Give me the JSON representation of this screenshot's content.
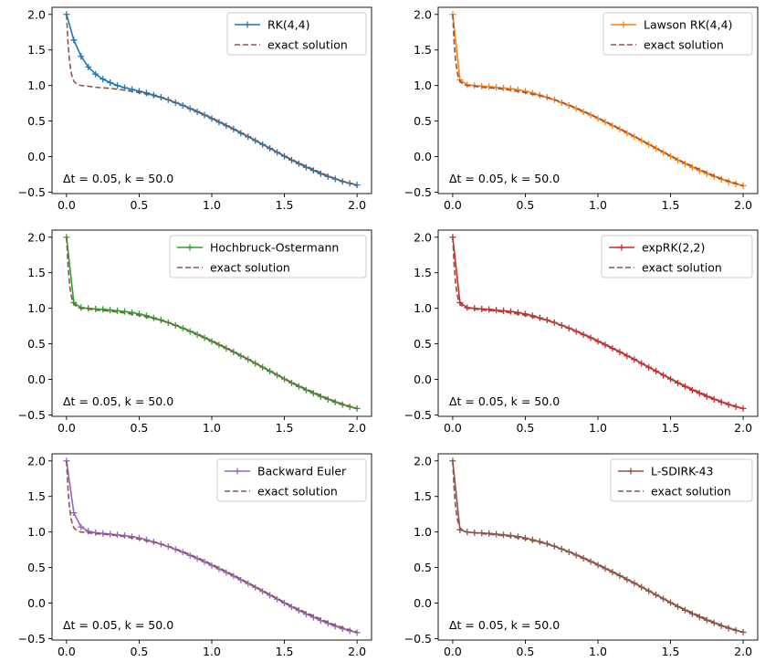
{
  "chart_data": [
    {
      "type": "line",
      "xlim": [
        -0.1,
        2.1
      ],
      "ylim": [
        -0.52,
        2.1
      ],
      "xticks": [
        "0.0",
        "0.5",
        "1.0",
        "1.5",
        "2.0"
      ],
      "yticks": [
        "−0.5",
        "0.0",
        "0.5",
        "1.0",
        "1.5",
        "2.0"
      ],
      "legend_position": "top-right",
      "annotation": "Δt = 0.05, k = 50.0",
      "series": [
        {
          "name": "RK(4,4)",
          "color": "#1f77b4",
          "style": "solid-plus-markers",
          "x": [
            0,
            0.05,
            0.1,
            0.15,
            0.2,
            0.25,
            0.3,
            0.35,
            0.4,
            0.45,
            0.5,
            0.55,
            0.6,
            0.65,
            0.7,
            0.75,
            0.8,
            0.85,
            0.9,
            0.95,
            1.0,
            1.05,
            1.1,
            1.15,
            1.2,
            1.25,
            1.3,
            1.35,
            1.4,
            1.45,
            1.5,
            1.55,
            1.6,
            1.65,
            1.7,
            1.75,
            1.8,
            1.85,
            1.9,
            1.95,
            2.0
          ],
          "y": [
            2.0,
            1.64,
            1.41,
            1.26,
            1.16,
            1.09,
            1.04,
            1.0,
            0.97,
            0.945,
            0.92,
            0.895,
            0.865,
            0.835,
            0.8,
            0.76,
            0.72,
            0.675,
            0.63,
            0.585,
            0.535,
            0.485,
            0.435,
            0.385,
            0.33,
            0.28,
            0.225,
            0.17,
            0.115,
            0.06,
            0.005,
            -0.05,
            -0.1,
            -0.15,
            -0.195,
            -0.24,
            -0.28,
            -0.315,
            -0.35,
            -0.375,
            -0.4
          ]
        },
        {
          "name": "exact solution",
          "color": "#8c564b",
          "style": "dashed",
          "x": [
            0,
            0.01,
            0.02,
            0.03,
            0.04,
            0.05,
            0.06,
            0.08,
            0.1,
            0.15,
            0.2,
            0.3,
            0.4,
            0.5,
            0.6,
            0.7,
            0.8,
            0.9,
            1.0,
            1.1,
            1.2,
            1.3,
            1.4,
            1.5,
            1.6,
            1.7,
            1.8,
            1.9,
            2.0
          ],
          "y": [
            2.0,
            1.6,
            1.35,
            1.2,
            1.11,
            1.06,
            1.04,
            1.01,
            1.0,
            0.99,
            0.975,
            0.96,
            0.935,
            0.9,
            0.855,
            0.8,
            0.725,
            0.64,
            0.545,
            0.445,
            0.34,
            0.23,
            0.12,
            0.01,
            -0.09,
            -0.18,
            -0.27,
            -0.345,
            -0.41
          ]
        }
      ]
    },
    {
      "type": "line",
      "xlim": [
        -0.1,
        2.1
      ],
      "ylim": [
        -0.52,
        2.1
      ],
      "xticks": [
        "0.0",
        "0.5",
        "1.0",
        "1.5",
        "2.0"
      ],
      "yticks": [
        "−0.5",
        "0.0",
        "0.5",
        "1.0",
        "1.5",
        "2.0"
      ],
      "legend_position": "top-right",
      "annotation": "Δt = 0.05, k = 50.0",
      "series": [
        {
          "name": "Lawson RK(4,4)",
          "color": "#ff7f0e",
          "style": "solid-plus-markers",
          "x": [
            0,
            0.05,
            0.1,
            0.15,
            0.2,
            0.25,
            0.3,
            0.35,
            0.4,
            0.45,
            0.5,
            0.55,
            0.6,
            0.65,
            0.7,
            0.75,
            0.8,
            0.85,
            0.9,
            0.95,
            1.0,
            1.05,
            1.1,
            1.15,
            1.2,
            1.25,
            1.3,
            1.35,
            1.4,
            1.45,
            1.5,
            1.55,
            1.6,
            1.65,
            1.7,
            1.75,
            1.8,
            1.85,
            1.9,
            1.95,
            2.0
          ],
          "y": [
            2.0,
            1.08,
            1.01,
            1.0,
            0.99,
            0.985,
            0.975,
            0.965,
            0.955,
            0.94,
            0.92,
            0.895,
            0.865,
            0.835,
            0.8,
            0.76,
            0.72,
            0.675,
            0.63,
            0.585,
            0.535,
            0.485,
            0.435,
            0.385,
            0.33,
            0.28,
            0.225,
            0.17,
            0.115,
            0.06,
            0.005,
            -0.05,
            -0.1,
            -0.15,
            -0.195,
            -0.24,
            -0.28,
            -0.32,
            -0.355,
            -0.385,
            -0.41
          ]
        },
        {
          "name": "exact solution",
          "color": "#8c564b",
          "style": "dashed",
          "x": [
            0,
            0.01,
            0.02,
            0.03,
            0.04,
            0.05,
            0.06,
            0.08,
            0.1,
            0.15,
            0.2,
            0.3,
            0.4,
            0.5,
            0.6,
            0.7,
            0.8,
            0.9,
            1.0,
            1.1,
            1.2,
            1.3,
            1.4,
            1.5,
            1.6,
            1.7,
            1.8,
            1.9,
            2.0
          ],
          "y": [
            2.0,
            1.6,
            1.35,
            1.2,
            1.11,
            1.06,
            1.04,
            1.01,
            1.0,
            0.99,
            0.975,
            0.96,
            0.935,
            0.9,
            0.855,
            0.8,
            0.725,
            0.64,
            0.545,
            0.445,
            0.34,
            0.23,
            0.12,
            0.01,
            -0.09,
            -0.18,
            -0.27,
            -0.345,
            -0.41
          ]
        }
      ]
    },
    {
      "type": "line",
      "xlim": [
        -0.1,
        2.1
      ],
      "ylim": [
        -0.52,
        2.1
      ],
      "xticks": [
        "0.0",
        "0.5",
        "1.0",
        "1.5",
        "2.0"
      ],
      "yticks": [
        "−0.5",
        "0.0",
        "0.5",
        "1.0",
        "1.5",
        "2.0"
      ],
      "legend_position": "top-right",
      "annotation": "Δt = 0.05, k = 50.0",
      "series": [
        {
          "name": "Hochbruck-Ostermann",
          "color": "#2ca02c",
          "style": "solid-plus-markers",
          "x": [
            0,
            0.05,
            0.1,
            0.15,
            0.2,
            0.25,
            0.3,
            0.35,
            0.4,
            0.45,
            0.5,
            0.55,
            0.6,
            0.65,
            0.7,
            0.75,
            0.8,
            0.85,
            0.9,
            0.95,
            1.0,
            1.05,
            1.1,
            1.15,
            1.2,
            1.25,
            1.3,
            1.35,
            1.4,
            1.45,
            1.5,
            1.55,
            1.6,
            1.65,
            1.7,
            1.75,
            1.8,
            1.85,
            1.9,
            1.95,
            2.0
          ],
          "y": [
            2.0,
            1.08,
            1.01,
            1.0,
            0.99,
            0.985,
            0.975,
            0.965,
            0.955,
            0.94,
            0.92,
            0.895,
            0.865,
            0.835,
            0.8,
            0.76,
            0.72,
            0.675,
            0.63,
            0.585,
            0.535,
            0.485,
            0.435,
            0.385,
            0.33,
            0.28,
            0.225,
            0.17,
            0.115,
            0.06,
            0.005,
            -0.05,
            -0.1,
            -0.15,
            -0.195,
            -0.24,
            -0.28,
            -0.32,
            -0.355,
            -0.385,
            -0.41
          ]
        },
        {
          "name": "exact solution",
          "color": "#8c564b",
          "style": "dashed",
          "x": [
            0,
            0.01,
            0.02,
            0.03,
            0.04,
            0.05,
            0.06,
            0.08,
            0.1,
            0.15,
            0.2,
            0.3,
            0.4,
            0.5,
            0.6,
            0.7,
            0.8,
            0.9,
            1.0,
            1.1,
            1.2,
            1.3,
            1.4,
            1.5,
            1.6,
            1.7,
            1.8,
            1.9,
            2.0
          ],
          "y": [
            2.0,
            1.6,
            1.35,
            1.2,
            1.11,
            1.06,
            1.04,
            1.01,
            1.0,
            0.99,
            0.975,
            0.96,
            0.935,
            0.9,
            0.855,
            0.8,
            0.725,
            0.64,
            0.545,
            0.445,
            0.34,
            0.23,
            0.12,
            0.01,
            -0.09,
            -0.18,
            -0.27,
            -0.345,
            -0.41
          ]
        }
      ]
    },
    {
      "type": "line",
      "xlim": [
        -0.1,
        2.1
      ],
      "ylim": [
        -0.52,
        2.1
      ],
      "xticks": [
        "0.0",
        "0.5",
        "1.0",
        "1.5",
        "2.0"
      ],
      "yticks": [
        "−0.5",
        "0.0",
        "0.5",
        "1.0",
        "1.5",
        "2.0"
      ],
      "legend_position": "top-right",
      "annotation": "Δt = 0.05, k = 50.0",
      "series": [
        {
          "name": "expRK(2,2)",
          "color": "#d62728",
          "style": "solid-plus-markers",
          "x": [
            0,
            0.05,
            0.1,
            0.15,
            0.2,
            0.25,
            0.3,
            0.35,
            0.4,
            0.45,
            0.5,
            0.55,
            0.6,
            0.65,
            0.7,
            0.75,
            0.8,
            0.85,
            0.9,
            0.95,
            1.0,
            1.05,
            1.1,
            1.15,
            1.2,
            1.25,
            1.3,
            1.35,
            1.4,
            1.45,
            1.5,
            1.55,
            1.6,
            1.65,
            1.7,
            1.75,
            1.8,
            1.85,
            1.9,
            1.95,
            2.0
          ],
          "y": [
            2.0,
            1.08,
            1.01,
            1.0,
            0.99,
            0.985,
            0.975,
            0.965,
            0.955,
            0.94,
            0.92,
            0.895,
            0.865,
            0.835,
            0.8,
            0.76,
            0.72,
            0.675,
            0.63,
            0.585,
            0.535,
            0.485,
            0.435,
            0.385,
            0.33,
            0.28,
            0.225,
            0.17,
            0.115,
            0.06,
            0.005,
            -0.05,
            -0.1,
            -0.15,
            -0.195,
            -0.24,
            -0.28,
            -0.32,
            -0.355,
            -0.385,
            -0.41
          ]
        },
        {
          "name": "exact solution",
          "color": "#8c564b",
          "style": "dashed",
          "x": [
            0,
            0.01,
            0.02,
            0.03,
            0.04,
            0.05,
            0.06,
            0.08,
            0.1,
            0.15,
            0.2,
            0.3,
            0.4,
            0.5,
            0.6,
            0.7,
            0.8,
            0.9,
            1.0,
            1.1,
            1.2,
            1.3,
            1.4,
            1.5,
            1.6,
            1.7,
            1.8,
            1.9,
            2.0
          ],
          "y": [
            2.0,
            1.6,
            1.35,
            1.2,
            1.11,
            1.06,
            1.04,
            1.01,
            1.0,
            0.99,
            0.975,
            0.96,
            0.935,
            0.9,
            0.855,
            0.8,
            0.725,
            0.64,
            0.545,
            0.445,
            0.34,
            0.23,
            0.12,
            0.01,
            -0.09,
            -0.18,
            -0.27,
            -0.345,
            -0.41
          ]
        }
      ]
    },
    {
      "type": "line",
      "xlim": [
        -0.1,
        2.1
      ],
      "ylim": [
        -0.52,
        2.1
      ],
      "xticks": [
        "0.0",
        "0.5",
        "1.0",
        "1.5",
        "2.0"
      ],
      "yticks": [
        "−0.5",
        "0.0",
        "0.5",
        "1.0",
        "1.5",
        "2.0"
      ],
      "legend_position": "top-right",
      "annotation": "Δt = 0.05, k = 50.0",
      "series": [
        {
          "name": "Backward Euler",
          "color": "#9467bd",
          "style": "solid-plus-markers",
          "x": [
            0,
            0.05,
            0.1,
            0.15,
            0.2,
            0.25,
            0.3,
            0.35,
            0.4,
            0.45,
            0.5,
            0.55,
            0.6,
            0.65,
            0.7,
            0.75,
            0.8,
            0.85,
            0.9,
            0.95,
            1.0,
            1.05,
            1.1,
            1.15,
            1.2,
            1.25,
            1.3,
            1.35,
            1.4,
            1.45,
            1.5,
            1.55,
            1.6,
            1.65,
            1.7,
            1.75,
            1.8,
            1.85,
            1.9,
            1.95,
            2.0
          ],
          "y": [
            2.0,
            1.27,
            1.07,
            1.01,
            0.99,
            0.98,
            0.97,
            0.96,
            0.95,
            0.935,
            0.915,
            0.89,
            0.86,
            0.83,
            0.795,
            0.755,
            0.715,
            0.67,
            0.625,
            0.58,
            0.53,
            0.48,
            0.43,
            0.38,
            0.325,
            0.275,
            0.22,
            0.165,
            0.11,
            0.055,
            0.0,
            -0.055,
            -0.105,
            -0.155,
            -0.2,
            -0.245,
            -0.285,
            -0.325,
            -0.36,
            -0.39,
            -0.415
          ]
        },
        {
          "name": "exact solution",
          "color": "#8c564b",
          "style": "dashed",
          "x": [
            0,
            0.01,
            0.02,
            0.03,
            0.04,
            0.05,
            0.06,
            0.08,
            0.1,
            0.15,
            0.2,
            0.3,
            0.4,
            0.5,
            0.6,
            0.7,
            0.8,
            0.9,
            1.0,
            1.1,
            1.2,
            1.3,
            1.4,
            1.5,
            1.6,
            1.7,
            1.8,
            1.9,
            2.0
          ],
          "y": [
            2.0,
            1.6,
            1.35,
            1.2,
            1.11,
            1.06,
            1.04,
            1.01,
            1.0,
            0.99,
            0.975,
            0.96,
            0.935,
            0.9,
            0.855,
            0.8,
            0.725,
            0.64,
            0.545,
            0.445,
            0.34,
            0.23,
            0.12,
            0.01,
            -0.09,
            -0.18,
            -0.27,
            -0.345,
            -0.41
          ]
        }
      ]
    },
    {
      "type": "line",
      "xlim": [
        -0.1,
        2.1
      ],
      "ylim": [
        -0.52,
        2.1
      ],
      "xticks": [
        "0.0",
        "0.5",
        "1.0",
        "1.5",
        "2.0"
      ],
      "yticks": [
        "−0.5",
        "0.0",
        "0.5",
        "1.0",
        "1.5",
        "2.0"
      ],
      "legend_position": "top-right",
      "annotation": "Δt = 0.05, k = 50.0",
      "series": [
        {
          "name": "L-SDIRK-43",
          "color": "#8c564b",
          "style": "solid-plus-markers",
          "x": [
            0,
            0.05,
            0.1,
            0.15,
            0.2,
            0.25,
            0.3,
            0.35,
            0.4,
            0.45,
            0.5,
            0.55,
            0.6,
            0.65,
            0.7,
            0.75,
            0.8,
            0.85,
            0.9,
            0.95,
            1.0,
            1.05,
            1.1,
            1.15,
            1.2,
            1.25,
            1.3,
            1.35,
            1.4,
            1.45,
            1.5,
            1.55,
            1.6,
            1.65,
            1.7,
            1.75,
            1.8,
            1.85,
            1.9,
            1.95,
            2.0
          ],
          "y": [
            2.0,
            1.03,
            1.0,
            0.99,
            0.985,
            0.98,
            0.97,
            0.96,
            0.95,
            0.935,
            0.915,
            0.89,
            0.865,
            0.835,
            0.8,
            0.76,
            0.72,
            0.675,
            0.63,
            0.585,
            0.535,
            0.485,
            0.435,
            0.385,
            0.33,
            0.28,
            0.225,
            0.17,
            0.115,
            0.06,
            0.005,
            -0.05,
            -0.1,
            -0.15,
            -0.195,
            -0.24,
            -0.28,
            -0.32,
            -0.355,
            -0.385,
            -0.41
          ]
        },
        {
          "name": "exact solution",
          "color": "#8c564b",
          "style": "dashed",
          "x": [
            0,
            0.01,
            0.02,
            0.03,
            0.04,
            0.05,
            0.06,
            0.08,
            0.1,
            0.15,
            0.2,
            0.3,
            0.4,
            0.5,
            0.6,
            0.7,
            0.8,
            0.9,
            1.0,
            1.1,
            1.2,
            1.3,
            1.4,
            1.5,
            1.6,
            1.7,
            1.8,
            1.9,
            2.0
          ],
          "y": [
            2.0,
            1.6,
            1.35,
            1.2,
            1.11,
            1.06,
            1.04,
            1.01,
            1.0,
            0.99,
            0.975,
            0.96,
            0.935,
            0.9,
            0.855,
            0.8,
            0.725,
            0.64,
            0.545,
            0.445,
            0.34,
            0.23,
            0.12,
            0.01,
            -0.09,
            -0.18,
            -0.27,
            -0.345,
            -0.41
          ]
        }
      ]
    }
  ]
}
